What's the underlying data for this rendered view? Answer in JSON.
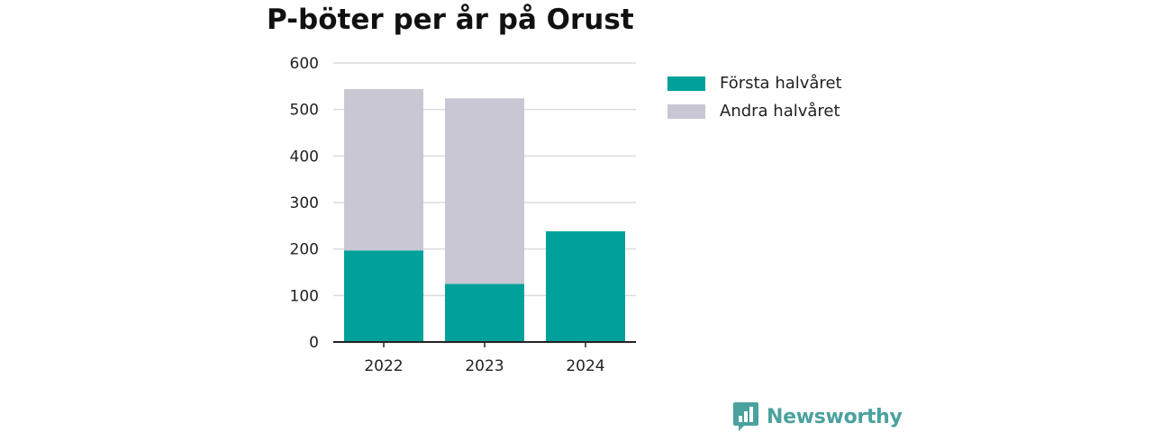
{
  "colors": {
    "first_half": "#00a19a",
    "second_half": "#c8c7d3",
    "brand": "#4aa29e"
  },
  "brand": {
    "name": "Newsworthy",
    "logo_icon": "bar-chart-speech-bubble-icon"
  },
  "chart_data": {
    "type": "bar",
    "stacked": true,
    "title": "P-böter per år på Orust",
    "categories": [
      "2022",
      "2023",
      "2024"
    ],
    "series": [
      {
        "name": "Första halvåret",
        "values": [
          197,
          125,
          238
        ]
      },
      {
        "name": "Andra halvåret",
        "values": [
          347,
          399,
          0
        ]
      }
    ],
    "ylim": [
      0,
      600
    ],
    "yticks": [
      "0",
      "100",
      "200",
      "300",
      "400",
      "500",
      "600"
    ],
    "grid": true,
    "legend_position": "right"
  }
}
